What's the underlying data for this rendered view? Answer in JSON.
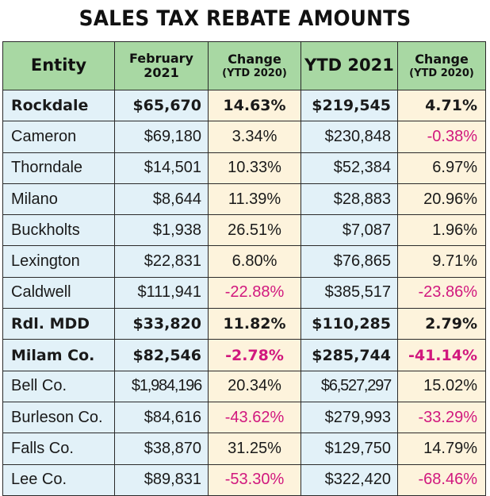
{
  "title": "SALES TAX REBATE AMOUNTS",
  "header": {
    "entity": "Entity",
    "february_line1": "February",
    "february_line2": "2021",
    "change1_line1": "Change",
    "change1_line2": "(YTD 2020)",
    "ytd": "YTD 2021",
    "change2_line1": "Change",
    "change2_line2": "(YTD 2020)"
  },
  "rows": [
    {
      "entity": "Rockdale",
      "february": "$65,670",
      "change_feb": "14.63%",
      "ytd": "$219,545",
      "change_ytd": "4.71%",
      "bold": true,
      "neg_feb": false,
      "neg_ytd": false
    },
    {
      "entity": "Cameron",
      "february": "$69,180",
      "change_feb": "3.34%",
      "ytd": "$230,848",
      "change_ytd": "-0.38%",
      "bold": false,
      "neg_feb": false,
      "neg_ytd": true
    },
    {
      "entity": "Thorndale",
      "february": "$14,501",
      "change_feb": "10.33%",
      "ytd": "$52,384",
      "change_ytd": "6.97%",
      "bold": false,
      "neg_feb": false,
      "neg_ytd": false
    },
    {
      "entity": "Milano",
      "february": "$8,644",
      "change_feb": "11.39%",
      "ytd": "$28,883",
      "change_ytd": "20.96%",
      "bold": false,
      "neg_feb": false,
      "neg_ytd": false
    },
    {
      "entity": "Buckholts",
      "february": "$1,938",
      "change_feb": "26.51%",
      "ytd": "$7,087",
      "change_ytd": "1.96%",
      "bold": false,
      "neg_feb": false,
      "neg_ytd": false
    },
    {
      "entity": "Lexington",
      "february": "$22,831",
      "change_feb": "6.80%",
      "ytd": "$76,865",
      "change_ytd": "9.71%",
      "bold": false,
      "neg_feb": false,
      "neg_ytd": false
    },
    {
      "entity": "Caldwell",
      "february": "$111,941",
      "change_feb": "-22.88%",
      "ytd": "$385,517",
      "change_ytd": "-23.86%",
      "bold": false,
      "neg_feb": true,
      "neg_ytd": true
    },
    {
      "entity": "Rdl. MDD",
      "february": "$33,820",
      "change_feb": "11.82%",
      "ytd": "$110,285",
      "change_ytd": "2.79%",
      "bold": true,
      "neg_feb": false,
      "neg_ytd": false
    },
    {
      "entity": "Milam Co.",
      "february": "$82,546",
      "change_feb": "-2.78%",
      "ytd": "$285,744",
      "change_ytd": "-41.14%",
      "bold": true,
      "neg_feb": true,
      "neg_ytd": true
    },
    {
      "entity": "Bell Co.",
      "february": "$1,984,196",
      "change_feb": "20.34%",
      "ytd": "$6,527,297",
      "change_ytd": "15.02%",
      "bold": false,
      "neg_feb": false,
      "neg_ytd": false
    },
    {
      "entity": "Burleson Co.",
      "february": "$84,616",
      "change_feb": "-43.62%",
      "ytd": "$279,993",
      "change_ytd": "-33.29%",
      "bold": false,
      "neg_feb": true,
      "neg_ytd": true
    },
    {
      "entity": "Falls Co.",
      "february": "$38,870",
      "change_feb": "31.25%",
      "ytd": "$129,750",
      "change_ytd": "14.79%",
      "bold": false,
      "neg_feb": false,
      "neg_ytd": false
    },
    {
      "entity": "Lee Co.",
      "february": "$89,831",
      "change_feb": "-53.30%",
      "ytd": "$322,420",
      "change_ytd": "-68.46%",
      "bold": false,
      "neg_feb": true,
      "neg_ytd": true
    }
  ],
  "colors": {
    "header_green": "#a8d8a3",
    "light_blue": "#e2f1f8",
    "cream": "#fdf3dc",
    "negative_magenta": "#d1187e"
  }
}
